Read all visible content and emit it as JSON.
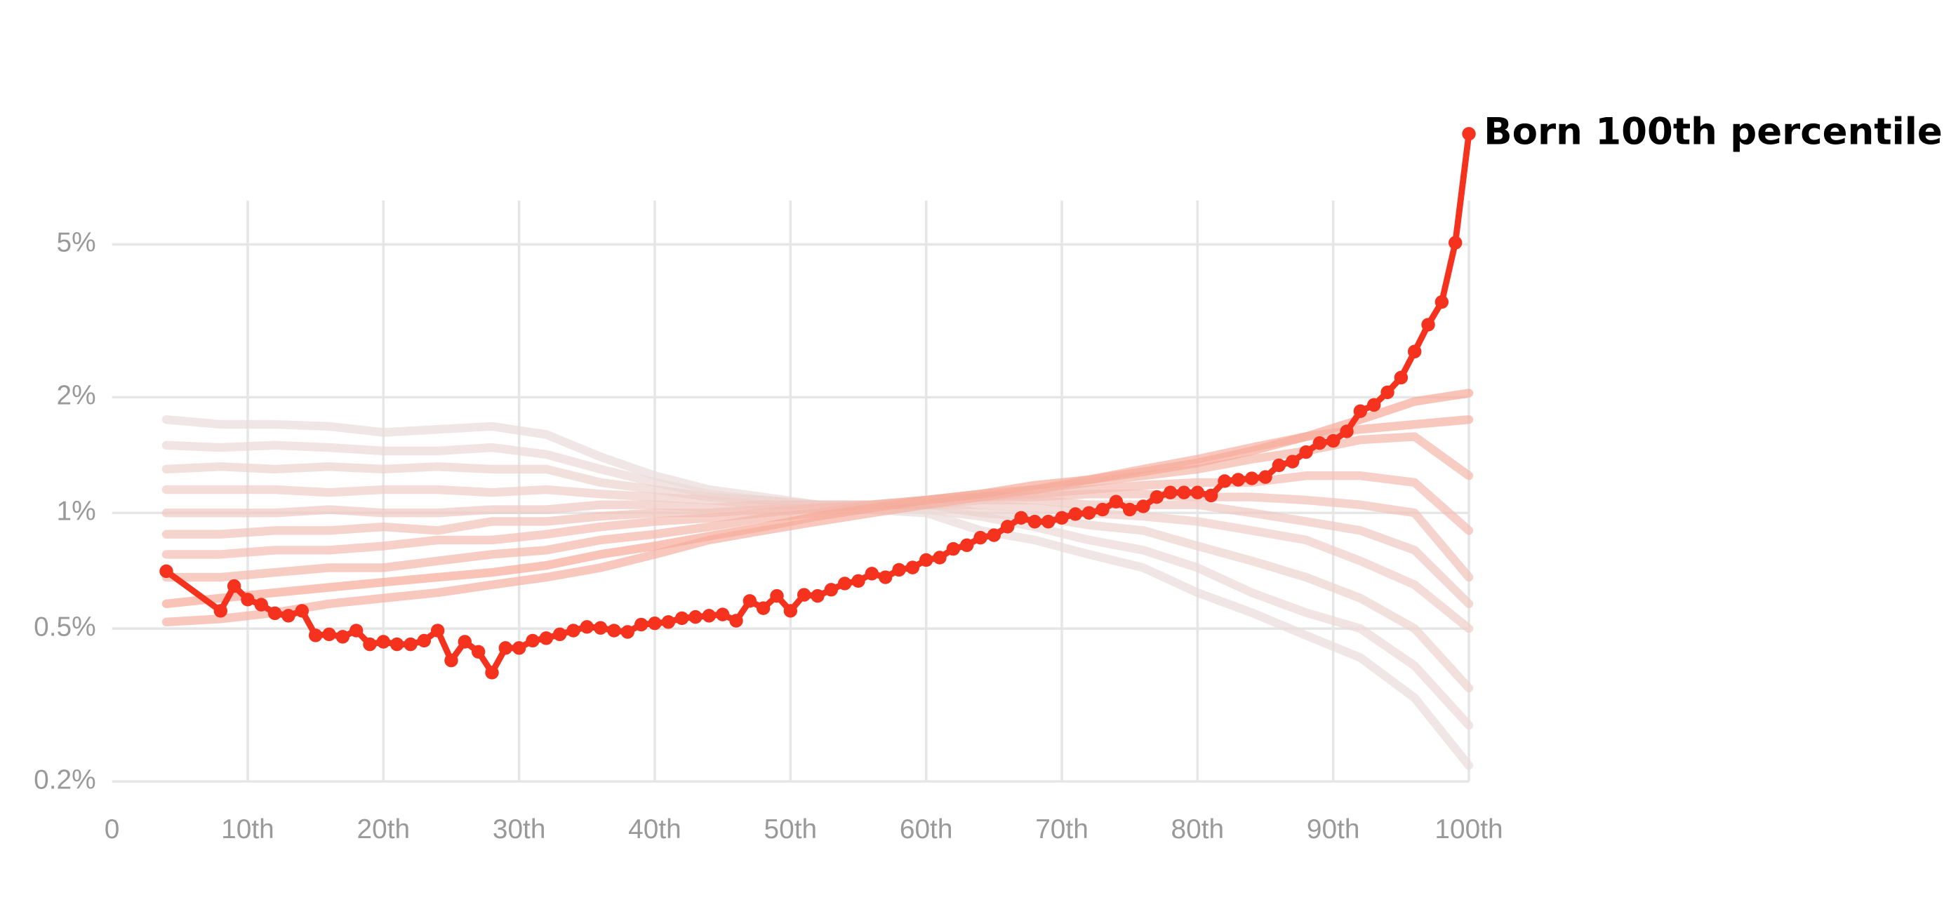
{
  "chart_data": {
    "type": "line",
    "log_y": true,
    "grid": true,
    "xlim": [
      0,
      100
    ],
    "ylim": [
      0.2,
      6.5
    ],
    "xticks": [
      0,
      {
        "value": 10,
        "label": "10th"
      },
      {
        "value": 20,
        "label": "20th"
      },
      {
        "value": 30,
        "label": "30th"
      },
      {
        "value": 40,
        "label": "40th"
      },
      {
        "value": 50,
        "label": "50th"
      },
      {
        "value": 60,
        "label": "60th"
      },
      {
        "value": 70,
        "label": "70th"
      },
      {
        "value": 80,
        "label": "80th"
      },
      {
        "value": 90,
        "label": "90th"
      },
      {
        "value": 100,
        "label": "100th"
      }
    ],
    "yticks": [
      {
        "value": 0.2,
        "label": "0.2%"
      },
      {
        "value": 0.5,
        "label": "0.5%"
      },
      {
        "value": 1,
        "label": "1%"
      },
      {
        "value": 2,
        "label": "2%"
      },
      {
        "value": 5,
        "label": "5%"
      }
    ],
    "series": [
      {
        "color": "#e9dcdc",
        "x": [
          4,
          8,
          12,
          16,
          20,
          24,
          28,
          32,
          36,
          40,
          44,
          48,
          52,
          56,
          60,
          64,
          68,
          72,
          76,
          80,
          84,
          88,
          92,
          96,
          100
        ],
        "values": [
          1.75,
          1.7,
          1.7,
          1.68,
          1.62,
          1.65,
          1.68,
          1.6,
          1.4,
          1.25,
          1.15,
          1.1,
          1.05,
          1.02,
          1.0,
          0.9,
          0.85,
          0.78,
          0.72,
          0.62,
          0.55,
          0.48,
          0.42,
          0.33,
          0.22
        ]
      },
      {
        "color": "#ebd8d6",
        "x": [
          4,
          8,
          12,
          16,
          20,
          24,
          28,
          32,
          36,
          40,
          44,
          48,
          52,
          56,
          60,
          64,
          68,
          72,
          76,
          80,
          84,
          88,
          92,
          96,
          100
        ],
        "values": [
          1.5,
          1.48,
          1.5,
          1.48,
          1.45,
          1.45,
          1.48,
          1.42,
          1.3,
          1.2,
          1.12,
          1.08,
          1.05,
          1.05,
          1.02,
          0.98,
          0.92,
          0.85,
          0.8,
          0.72,
          0.62,
          0.55,
          0.5,
          0.4,
          0.28
        ]
      },
      {
        "color": "#edd3cf",
        "x": [
          4,
          8,
          12,
          16,
          20,
          24,
          28,
          32,
          36,
          40,
          44,
          48,
          52,
          56,
          60,
          64,
          68,
          72,
          76,
          80,
          84,
          88,
          92,
          96,
          100
        ],
        "values": [
          1.3,
          1.32,
          1.3,
          1.32,
          1.3,
          1.32,
          1.3,
          1.3,
          1.2,
          1.15,
          1.1,
          1.08,
          1.05,
          1.05,
          1.05,
          1.0,
          0.98,
          0.93,
          0.9,
          0.82,
          0.75,
          0.68,
          0.6,
          0.5,
          0.35
        ]
      },
      {
        "color": "#efcdc8",
        "x": [
          4,
          8,
          12,
          16,
          20,
          24,
          28,
          32,
          36,
          40,
          44,
          48,
          52,
          56,
          60,
          64,
          68,
          72,
          76,
          80,
          84,
          88,
          92,
          96,
          100
        ],
        "values": [
          1.15,
          1.15,
          1.15,
          1.13,
          1.15,
          1.15,
          1.13,
          1.15,
          1.12,
          1.1,
          1.08,
          1.05,
          1.05,
          1.05,
          1.05,
          1.05,
          1.03,
          1.0,
          0.98,
          0.95,
          0.9,
          0.85,
          0.75,
          0.65,
          0.5
        ]
      },
      {
        "color": "#f0c8c1",
        "x": [
          4,
          8,
          12,
          16,
          20,
          24,
          28,
          32,
          36,
          40,
          44,
          48,
          52,
          56,
          60,
          64,
          68,
          72,
          76,
          80,
          84,
          88,
          92,
          96,
          100
        ],
        "values": [
          1.0,
          1.0,
          1.0,
          1.02,
          1.0,
          1.0,
          1.02,
          1.02,
          1.05,
          1.05,
          1.03,
          1.05,
          1.05,
          1.05,
          1.05,
          1.08,
          1.08,
          1.05,
          1.05,
          1.05,
          1.0,
          0.95,
          0.9,
          0.8,
          0.58
        ]
      },
      {
        "color": "#f2c2b9",
        "x": [
          4,
          8,
          12,
          16,
          20,
          24,
          28,
          32,
          36,
          40,
          44,
          48,
          52,
          56,
          60,
          64,
          68,
          72,
          76,
          80,
          84,
          88,
          92,
          96,
          100
        ],
        "values": [
          0.88,
          0.88,
          0.9,
          0.9,
          0.92,
          0.9,
          0.95,
          0.95,
          0.98,
          1.0,
          1.0,
          1.02,
          1.03,
          1.05,
          1.08,
          1.1,
          1.1,
          1.12,
          1.12,
          1.1,
          1.1,
          1.08,
          1.05,
          1.0,
          0.68
        ]
      },
      {
        "color": "#f3bcb2",
        "x": [
          4,
          8,
          12,
          16,
          20,
          24,
          28,
          32,
          36,
          40,
          44,
          48,
          52,
          56,
          60,
          64,
          68,
          72,
          76,
          80,
          84,
          88,
          92,
          96,
          100
        ],
        "values": [
          0.78,
          0.78,
          0.8,
          0.8,
          0.82,
          0.85,
          0.85,
          0.88,
          0.92,
          0.95,
          0.97,
          1.0,
          1.03,
          1.05,
          1.08,
          1.1,
          1.12,
          1.15,
          1.18,
          1.2,
          1.2,
          1.25,
          1.25,
          1.2,
          0.9
        ]
      },
      {
        "color": "#f4b6aa",
        "x": [
          4,
          8,
          12,
          16,
          20,
          24,
          28,
          32,
          36,
          40,
          44,
          48,
          52,
          56,
          60,
          64,
          68,
          72,
          76,
          80,
          84,
          88,
          92,
          96,
          100
        ],
        "values": [
          0.68,
          0.68,
          0.7,
          0.72,
          0.72,
          0.75,
          0.78,
          0.8,
          0.85,
          0.88,
          0.92,
          0.97,
          1.0,
          1.05,
          1.08,
          1.12,
          1.15,
          1.2,
          1.25,
          1.3,
          1.38,
          1.45,
          1.55,
          1.58,
          1.25
        ]
      },
      {
        "color": "#f5b0a2",
        "x": [
          4,
          8,
          12,
          16,
          20,
          24,
          28,
          32,
          36,
          40,
          44,
          48,
          52,
          56,
          60,
          64,
          68,
          72,
          76,
          80,
          84,
          88,
          92,
          96,
          100
        ],
        "values": [
          0.52,
          0.53,
          0.55,
          0.58,
          0.6,
          0.62,
          0.65,
          0.68,
          0.72,
          0.78,
          0.85,
          0.9,
          0.95,
          1.0,
          1.05,
          1.1,
          1.15,
          1.22,
          1.3,
          1.38,
          1.48,
          1.58,
          1.65,
          1.7,
          1.75
        ]
      },
      {
        "color": "#f6a999",
        "x": [
          4,
          8,
          12,
          16,
          20,
          24,
          28,
          32,
          36,
          40,
          44,
          48,
          52,
          56,
          60,
          64,
          68,
          72,
          76,
          80,
          84,
          88,
          92,
          96,
          100
        ],
        "values": [
          0.58,
          0.6,
          0.62,
          0.64,
          0.66,
          0.68,
          0.7,
          0.73,
          0.78,
          0.82,
          0.87,
          0.92,
          0.98,
          1.03,
          1.08,
          1.12,
          1.18,
          1.22,
          1.28,
          1.35,
          1.45,
          1.58,
          1.75,
          1.95,
          2.05
        ]
      },
      {
        "name": "Born 100th percentile",
        "color": "#f5321e",
        "markers": true,
        "x": [
          4,
          8,
          9,
          10,
          11,
          12,
          13,
          14,
          15,
          16,
          17,
          18,
          19,
          20,
          21,
          22,
          23,
          24,
          25,
          26,
          27,
          28,
          29,
          30,
          31,
          32,
          33,
          34,
          35,
          36,
          37,
          38,
          39,
          40,
          41,
          42,
          43,
          44,
          45,
          46,
          47,
          48,
          49,
          50,
          51,
          52,
          53,
          54,
          55,
          56,
          57,
          58,
          59,
          60,
          61,
          62,
          63,
          64,
          65,
          66,
          67,
          68,
          69,
          70,
          71,
          72,
          73,
          74,
          75,
          76,
          77,
          78,
          79,
          80,
          81,
          82,
          83,
          84,
          85,
          86,
          87,
          88,
          89,
          90,
          91,
          92,
          93,
          94,
          95,
          96,
          97,
          98,
          99,
          100
        ],
        "values": [
          0.705,
          0.556,
          0.645,
          0.595,
          0.577,
          0.548,
          0.54,
          0.556,
          0.48,
          0.483,
          0.476,
          0.494,
          0.455,
          0.462,
          0.455,
          0.455,
          0.465,
          0.494,
          0.413,
          0.462,
          0.435,
          0.384,
          0.445,
          0.445,
          0.465,
          0.472,
          0.483,
          0.494,
          0.505,
          0.502,
          0.494,
          0.49,
          0.512,
          0.516,
          0.52,
          0.532,
          0.536,
          0.54,
          0.544,
          0.524,
          0.59,
          0.565,
          0.608,
          0.556,
          0.612,
          0.608,
          0.631,
          0.655,
          0.665,
          0.695,
          0.68,
          0.711,
          0.721,
          0.754,
          0.765,
          0.806,
          0.824,
          0.862,
          0.875,
          0.921,
          0.971,
          0.949,
          0.949,
          0.971,
          0.993,
          1.0,
          1.02,
          1.07,
          1.02,
          1.04,
          1.1,
          1.13,
          1.13,
          1.13,
          1.11,
          1.21,
          1.22,
          1.23,
          1.24,
          1.33,
          1.36,
          1.44,
          1.52,
          1.54,
          1.63,
          1.84,
          1.91,
          2.06,
          2.25,
          2.63,
          3.09,
          3.54,
          5.05,
          9.7
        ]
      }
    ]
  }
}
